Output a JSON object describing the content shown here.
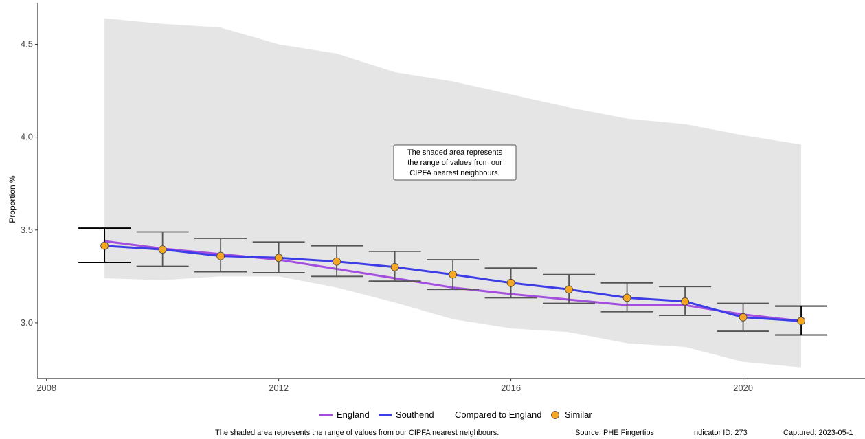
{
  "chart_data": {
    "type": "line",
    "xlabel": "",
    "ylabel": "Proportion %",
    "xlim": [
      2007.85,
      2022.1
    ],
    "ylim": [
      2.7,
      4.72
    ],
    "x_ticks": [
      2008,
      2012,
      2016,
      2020
    ],
    "y_ticks": [
      3.0,
      3.5,
      4.0,
      4.5
    ],
    "y_tick_labels": [
      "3.0",
      "3.5",
      "4.0",
      "4.5"
    ],
    "grid": false,
    "years": [
      2009,
      2010,
      2011,
      2012,
      2013,
      2014,
      2015,
      2016,
      2017,
      2018,
      2019,
      2020,
      2021
    ],
    "range_band": {
      "upper": [
        4.64,
        4.61,
        4.59,
        4.5,
        4.45,
        4.35,
        4.3,
        4.23,
        4.16,
        4.1,
        4.07,
        4.01,
        3.96
      ],
      "lower": [
        3.24,
        3.23,
        3.25,
        3.25,
        3.19,
        3.11,
        3.02,
        2.97,
        2.95,
        2.89,
        2.87,
        2.79,
        2.76
      ]
    },
    "series": [
      {
        "name": "England",
        "color": "#a34ee0",
        "values": [
          3.44,
          3.4,
          3.37,
          3.34,
          3.29,
          3.24,
          3.19,
          3.155,
          3.125,
          3.095,
          3.095,
          3.045,
          3.01
        ]
      },
      {
        "name": "Southend",
        "color": "#3d3de6",
        "values": [
          3.415,
          3.395,
          3.36,
          3.35,
          3.33,
          3.3,
          3.26,
          3.215,
          3.18,
          3.135,
          3.115,
          3.03,
          3.01
        ]
      }
    ],
    "ci_lower": [
      3.325,
      3.305,
      3.275,
      3.27,
      3.25,
      3.225,
      3.18,
      3.135,
      3.105,
      3.06,
      3.04,
      2.955,
      2.935
    ],
    "ci_upper": [
      3.51,
      3.49,
      3.455,
      3.435,
      3.415,
      3.385,
      3.34,
      3.295,
      3.26,
      3.215,
      3.195,
      3.105,
      3.09
    ],
    "comparison": {
      "label": "Compared to England",
      "category": "Similar",
      "color": "#f5a623"
    },
    "annotation": [
      "The shaded area represents",
      "the range of values from our",
      "CIPFA nearest neighbours."
    ],
    "caption": {
      "note": "The shaded area represents the range of values from our CIPFA nearest neighbours.",
      "source": "Source: PHE Fingertips",
      "indicator": "Indicator ID: 273",
      "captured": "Captured: 2023-05-1"
    }
  }
}
